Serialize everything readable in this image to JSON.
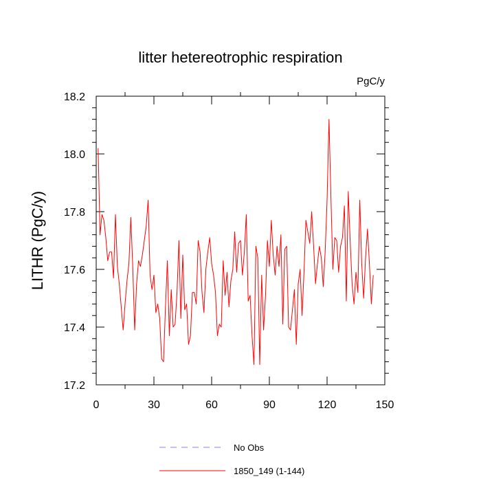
{
  "chart_data": {
    "type": "line",
    "title": "litter hetereotrophic respiration",
    "units_label": "PgC/y",
    "ylabel": "LITHR  (PgC/y)",
    "xlabel": "",
    "xlim": [
      0,
      150
    ],
    "ylim": [
      17.2,
      18.2
    ],
    "x_ticks": [
      0,
      30,
      60,
      90,
      120,
      150
    ],
    "y_ticks": [
      17.2,
      17.4,
      17.6,
      17.8,
      18.0,
      18.2
    ],
    "x_tick_labels": [
      "0",
      "30",
      "60",
      "90",
      "120",
      "150"
    ],
    "y_tick_labels": [
      "17.2",
      "17.4",
      "17.6",
      "17.8",
      "18.0",
      "18.2"
    ],
    "grid": false,
    "legend_position": "bottom",
    "legend": [
      {
        "label": "No Obs",
        "color": "#8080ff",
        "dashed": true
      },
      {
        "label": "1850_149 (1-144)",
        "color": "#ff0000",
        "dashed": false
      }
    ],
    "series": [
      {
        "name": "1850_149 (1-144)",
        "color": "#ff0000",
        "x_start": 1,
        "values": [
          18.02,
          17.72,
          17.79,
          17.77,
          17.71,
          17.63,
          17.66,
          17.66,
          17.57,
          17.79,
          17.61,
          17.55,
          17.47,
          17.39,
          17.48,
          17.56,
          17.62,
          17.78,
          17.61,
          17.39,
          17.55,
          17.63,
          17.61,
          17.65,
          17.7,
          17.75,
          17.84,
          17.58,
          17.53,
          17.58,
          17.45,
          17.48,
          17.43,
          17.29,
          17.28,
          17.47,
          17.63,
          17.37,
          17.53,
          17.4,
          17.41,
          17.52,
          17.7,
          17.43,
          17.65,
          17.46,
          17.48,
          17.34,
          17.37,
          17.52,
          17.52,
          17.48,
          17.7,
          17.66,
          17.52,
          17.45,
          17.6,
          17.66,
          17.71,
          17.62,
          17.58,
          17.52,
          17.37,
          17.41,
          17.4,
          17.63,
          17.51,
          17.59,
          17.47,
          17.56,
          17.6,
          17.73,
          17.59,
          17.69,
          17.7,
          17.58,
          17.66,
          17.79,
          17.49,
          17.51,
          17.37,
          17.27,
          17.68,
          17.64,
          17.27,
          17.58,
          17.39,
          17.51,
          17.7,
          17.61,
          17.77,
          17.65,
          17.58,
          17.68,
          17.61,
          17.72,
          17.41,
          17.67,
          17.68,
          17.4,
          17.39,
          17.46,
          17.53,
          17.34,
          17.55,
          17.6,
          17.44,
          17.59,
          17.77,
          17.73,
          17.69,
          17.8,
          17.68,
          17.55,
          17.62,
          17.68,
          17.64,
          17.54,
          17.66,
          17.84,
          18.12,
          17.85,
          17.6,
          17.71,
          17.7,
          17.59,
          17.68,
          17.71,
          17.82,
          17.49,
          17.87,
          17.7,
          17.55,
          17.48,
          17.59,
          17.52,
          17.84,
          17.62,
          17.5,
          17.64,
          17.74,
          17.62,
          17.48,
          17.58
        ]
      }
    ]
  }
}
